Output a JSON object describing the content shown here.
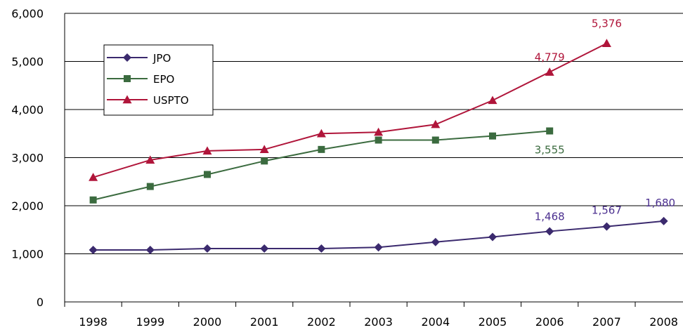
{
  "chart_data": {
    "type": "line",
    "x": [
      "1998",
      "1999",
      "2000",
      "2001",
      "2002",
      "2003",
      "2004",
      "2005",
      "2006",
      "2007",
      "2008"
    ],
    "ylim": [
      0,
      6000
    ],
    "yticks": [
      "0",
      "1,000",
      "2,000",
      "3,000",
      "4,000",
      "5,000",
      "6,000"
    ],
    "grid": true,
    "legend_position": "top-left",
    "series": [
      {
        "name": "JPO",
        "marker": "diamond",
        "color": "#3b2a6e",
        "label_color": "#4b2f8f",
        "values": [
          1080,
          1080,
          1110,
          1110,
          1110,
          1135,
          1245,
          1350,
          1468,
          1567,
          1680
        ],
        "labels": [
          "",
          "",
          "",
          "",
          "",
          "",
          "",
          "",
          "1,468",
          "1,567",
          "1,680"
        ]
      },
      {
        "name": "EPO",
        "marker": "square",
        "color": "#3b6b3f",
        "label_color": "#3b6b3f",
        "values": [
          2120,
          2400,
          2650,
          2930,
          3170,
          3365,
          3365,
          3450,
          3555,
          null,
          null
        ],
        "labels": [
          "",
          "",
          "",
          "",
          "",
          "",
          "",
          "",
          "3,555",
          "",
          ""
        ]
      },
      {
        "name": "USPTO",
        "marker": "triangle",
        "color": "#b0153a",
        "label_color": "#b0153a",
        "values": [
          2590,
          2950,
          3140,
          3170,
          3500,
          3530,
          3690,
          4190,
          4779,
          5376,
          null
        ],
        "labels": [
          "",
          "",
          "",
          "",
          "",
          "",
          "",
          "",
          "4,779",
          "5,376",
          ""
        ]
      }
    ]
  }
}
